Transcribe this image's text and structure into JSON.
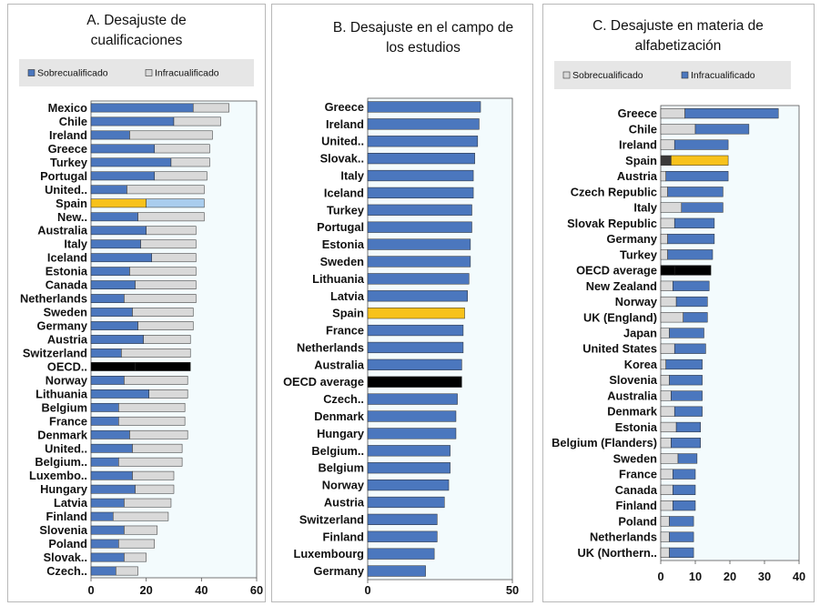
{
  "colors": {
    "over": "#4b77be",
    "under": "#d9d9d9",
    "spain": "#f7c21b",
    "spain_light": "#a9cdee",
    "spain_dark": "#3a3a3a",
    "oecd": "#000000",
    "plot_bg": "#f3fbfd",
    "legend_bg": "#e6e6e6",
    "bar_edge": "#1f3f73"
  },
  "chart_data": [
    {
      "id": "A",
      "type": "bar",
      "orientation": "horizontal",
      "stacked": true,
      "title_lines": [
        "A. Desajuste de",
        "cualificaciones"
      ],
      "legend": [
        {
          "key": "over",
          "label": "Sobrecualificado"
        },
        {
          "key": "under",
          "label": "Infracualificado"
        }
      ],
      "xlim": [
        0,
        60
      ],
      "ticks": [
        0,
        20,
        40,
        60
      ],
      "categories": [
        "Mexico",
        "Chile",
        "Ireland",
        "Greece",
        "Turkey",
        "Portugal",
        "United..",
        "Spain",
        "New..",
        "Australia",
        "Italy",
        "Iceland",
        "Estonia",
        "Canada",
        "Netherlands",
        "Sweden",
        "Germany",
        "Austria",
        "Switzerland",
        "OECD..",
        "Norway",
        "Lithuania",
        "Belgium",
        "France",
        "Denmark",
        "United..",
        "Belgium..",
        "Luxembo..",
        "Hungary",
        "Latvia",
        "Finland",
        "Slovenia",
        "Poland",
        "Slovak..",
        "Czech.."
      ],
      "series": [
        {
          "name": "Sobrecualificado",
          "key": "over",
          "values": [
            37,
            30,
            14,
            23,
            29,
            23,
            13,
            20,
            17,
            20,
            18,
            22,
            14,
            16,
            12,
            15,
            17,
            19,
            11,
            16,
            12,
            21,
            10,
            10,
            14,
            15,
            10,
            15,
            16,
            12,
            8,
            12,
            10,
            12,
            9
          ]
        },
        {
          "name": "Infracualificado",
          "key": "under",
          "values": [
            13,
            17,
            30,
            20,
            14,
            19,
            28,
            21,
            24,
            18,
            20,
            16,
            24,
            22,
            26,
            22,
            20,
            17,
            25,
            20,
            23,
            14,
            24,
            24,
            21,
            18,
            23,
            15,
            14,
            17,
            20,
            12,
            13,
            8,
            8
          ]
        }
      ],
      "highlights": {
        "Spain": "spain",
        "OECD..": "oecd"
      }
    },
    {
      "id": "B",
      "type": "bar",
      "orientation": "horizontal",
      "stacked": false,
      "title_lines": [
        "B. Desajuste en el campo de",
        "los estudios"
      ],
      "xlim": [
        0,
        50
      ],
      "ticks": [
        0,
        50
      ],
      "categories": [
        "Greece",
        "Ireland",
        "United..",
        "Slovak..",
        "Italy",
        "Iceland",
        "Turkey",
        "Portugal",
        "Estonia",
        "Sweden",
        "Lithuania",
        "Latvia",
        "Spain",
        "France",
        "Netherlands",
        "Australia",
        "OECD average",
        "Czech..",
        "Denmark",
        "Hungary",
        "Belgium..",
        "Belgium",
        "Norway",
        "Austria",
        "Switzerland",
        "Finland",
        "Luxembourg",
        "Germany"
      ],
      "series": [
        {
          "name": "Desajuste en el campo de los estudios",
          "key": "over",
          "values": [
            39,
            38.5,
            38,
            37,
            36.5,
            36.5,
            36,
            36,
            35.5,
            35.5,
            35,
            34.5,
            33.5,
            33,
            33,
            32.5,
            32.5,
            31,
            30.5,
            30.5,
            28.5,
            28.5,
            28,
            26.5,
            24,
            24,
            23,
            20
          ]
        }
      ],
      "highlights": {
        "Spain": "spain",
        "OECD average": "oecd"
      }
    },
    {
      "id": "C",
      "type": "bar",
      "orientation": "horizontal",
      "stacked": true,
      "title_lines": [
        "C. Desajuste en materia de",
        "alfabetización"
      ],
      "legend": [
        {
          "key": "under",
          "label": "Sobrecualificado"
        },
        {
          "key": "over",
          "label": "Infracualificado"
        }
      ],
      "xlim": [
        0,
        40
      ],
      "ticks": [
        0,
        10,
        20,
        30,
        40
      ],
      "categories": [
        "Greece",
        "Chile",
        "Ireland",
        "Spain",
        "Austria",
        "Czech Republic",
        "Italy",
        "Slovak Republic",
        "Germany",
        "Turkey",
        "OECD average",
        "New Zealand",
        "Norway",
        "UK (England)",
        "Japan",
        "United States",
        "Korea",
        "Slovenia",
        "Australia",
        "Denmark",
        "Estonia",
        "Belgium (Flanders)",
        "Sweden",
        "France",
        "Canada",
        "Finland",
        "Poland",
        "Netherlands",
        "UK (Northern.."
      ],
      "series": [
        {
          "name": "Sobrecualificado",
          "key": "under",
          "values": [
            7,
            10,
            4,
            3,
            1.5,
            2,
            6,
            4,
            2,
            2,
            4,
            3.5,
            4.5,
            6.5,
            2.5,
            4,
            1.5,
            2.5,
            3,
            4,
            4.5,
            3,
            5,
            3.5,
            3.5,
            3.5,
            2.5,
            2.5,
            2.5
          ]
        },
        {
          "name": "Infracualificado",
          "key": "over",
          "values": [
            27,
            15.5,
            15.5,
            16.5,
            18,
            16,
            12,
            11.5,
            13.5,
            13,
            10.5,
            10.5,
            9,
            7,
            10,
            9,
            10.5,
            9.5,
            9,
            8,
            7,
            8.5,
            5.5,
            6.5,
            6.5,
            6.5,
            7,
            7,
            7
          ]
        }
      ],
      "highlights": {
        "Spain": "spain",
        "OECD average": "oecd"
      }
    }
  ]
}
